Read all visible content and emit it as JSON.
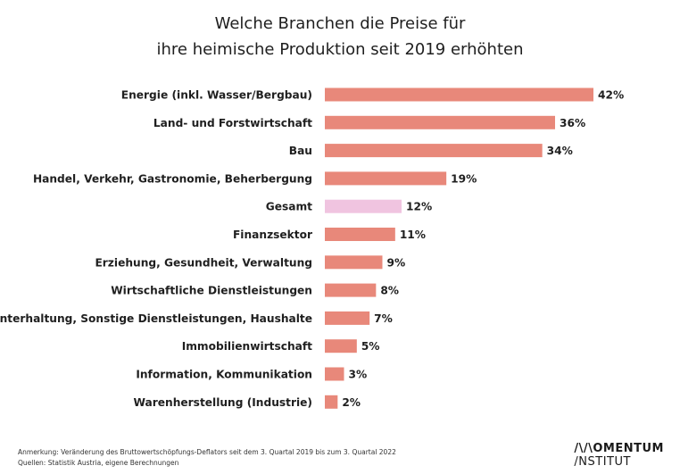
{
  "chart_data": {
    "type": "bar",
    "orientation": "horizontal",
    "title_lines": [
      "Welche Branchen die Preise für",
      "ihre heimische Produktion seit 2019 erhöhten"
    ],
    "categories": [
      "Energie (inkl. Wasser/Bergbau)",
      "Land- und Forstwirtschaft",
      "Bau",
      "Handel, Verkehr, Gastronomie, Beherbergung",
      "Gesamt",
      "Finanzsektor",
      "Erziehung, Gesundheit, Verwaltung",
      "Wirtschaftliche Dienstleistungen",
      "Unterhaltung, Sonstige Dienstleistungen, Haushalte",
      "Immobilienwirtschaft",
      "Information, Kommunikation",
      "Warenherstellung (Industrie)"
    ],
    "values": [
      42,
      36,
      34,
      19,
      12,
      11,
      9,
      8,
      7,
      5,
      3,
      2
    ],
    "value_labels": [
      "42%",
      "36%",
      "34%",
      "19%",
      "12%",
      "11%",
      "9%",
      "8%",
      "7%",
      "5%",
      "3%",
      "2%"
    ],
    "highlight_category": "Gesamt",
    "colors": {
      "bar": "#e8887a",
      "highlight": "#f0c4e0",
      "text": "#1f1f1f"
    },
    "xlim": [
      0,
      42
    ],
    "grid": false,
    "legend": "none"
  },
  "footnote": {
    "note": "Anmerkung:  Veränderung des Bruttowertschöpfungs-Deflators  seit dem 3. Quartal 2019 bis zum 3. Quartal 2022",
    "sources": "Quellen: Statistik Austria, eigene Berechnungen"
  },
  "logo": {
    "line1": "/\\/\\OMENTUM",
    "line2": "/NSTITUT"
  }
}
